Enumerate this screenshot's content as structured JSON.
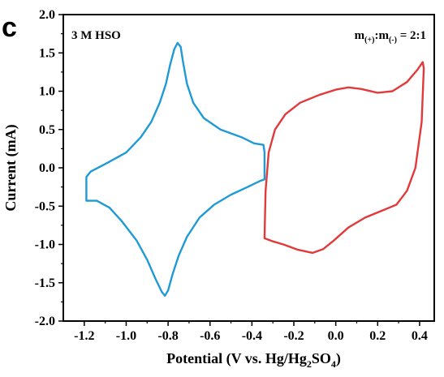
{
  "chart_data": {
    "type": "line",
    "panel_label": "c",
    "annotation_left": "3 M HSO",
    "annotation_right": {
      "m1": "m",
      "s1": "(+)",
      "colon": ":m",
      "s2": "(-)",
      "tail": " = 2:1"
    },
    "xlabel": {
      "a": "Potential (V vs. Hg/Hg",
      "s1": "2",
      "b": "SO",
      "s2": "4",
      "c": ")"
    },
    "ylabel": "Current  (mA)",
    "xlim": [
      -1.3,
      0.47
    ],
    "ylim": [
      -2.0,
      2.0
    ],
    "xticks": [
      -1.2,
      -1.0,
      -0.8,
      -0.6,
      -0.4,
      -0.2,
      0.0,
      0.2,
      0.4
    ],
    "xtick_labels": [
      "-1.2",
      "-1.0",
      "-0.8",
      "-0.6",
      "-0.4",
      "-0.2",
      "0.0",
      "0.2",
      "0.4"
    ],
    "yticks": [
      -2.0,
      -1.5,
      -1.0,
      -0.5,
      0.0,
      0.5,
      1.0,
      1.5,
      2.0
    ],
    "ytick_labels": [
      "-2.0",
      "-1.5",
      "-1.0",
      "-0.5",
      "0.0",
      "0.5",
      "1.0",
      "1.5",
      "2.0"
    ],
    "grid": false,
    "legend": "none",
    "series": [
      {
        "color": "#1f9ad6",
        "points": [
          [
            -1.19,
            -0.43
          ],
          [
            -1.19,
            -0.12
          ],
          [
            -1.17,
            -0.05
          ],
          [
            -1.1,
            0.05
          ],
          [
            -1.0,
            0.2
          ],
          [
            -0.93,
            0.4
          ],
          [
            -0.88,
            0.6
          ],
          [
            -0.84,
            0.85
          ],
          [
            -0.81,
            1.1
          ],
          [
            -0.79,
            1.35
          ],
          [
            -0.77,
            1.55
          ],
          [
            -0.755,
            1.63
          ],
          [
            -0.74,
            1.58
          ],
          [
            -0.73,
            1.4
          ],
          [
            -0.71,
            1.1
          ],
          [
            -0.68,
            0.85
          ],
          [
            -0.63,
            0.65
          ],
          [
            -0.55,
            0.5
          ],
          [
            -0.45,
            0.4
          ],
          [
            -0.39,
            0.32
          ],
          [
            -0.345,
            0.3
          ],
          [
            -0.34,
            0.2
          ],
          [
            -0.34,
            -0.15
          ],
          [
            -0.36,
            -0.17
          ],
          [
            -0.42,
            -0.25
          ],
          [
            -0.5,
            -0.35
          ],
          [
            -0.58,
            -0.48
          ],
          [
            -0.65,
            -0.65
          ],
          [
            -0.71,
            -0.9
          ],
          [
            -0.75,
            -1.15
          ],
          [
            -0.78,
            -1.4
          ],
          [
            -0.8,
            -1.6
          ],
          [
            -0.815,
            -1.67
          ],
          [
            -0.83,
            -1.62
          ],
          [
            -0.86,
            -1.45
          ],
          [
            -0.9,
            -1.2
          ],
          [
            -0.95,
            -0.95
          ],
          [
            -1.02,
            -0.7
          ],
          [
            -1.08,
            -0.52
          ],
          [
            -1.14,
            -0.43
          ],
          [
            -1.19,
            -0.43
          ]
        ]
      },
      {
        "color": "#e23a3a",
        "points": [
          [
            -0.34,
            -0.92
          ],
          [
            -0.335,
            -0.3
          ],
          [
            -0.32,
            0.2
          ],
          [
            -0.29,
            0.5
          ],
          [
            -0.24,
            0.7
          ],
          [
            -0.17,
            0.85
          ],
          [
            -0.08,
            0.95
          ],
          [
            0.0,
            1.02
          ],
          [
            0.06,
            1.05
          ],
          [
            0.12,
            1.03
          ],
          [
            0.2,
            0.98
          ],
          [
            0.27,
            1.0
          ],
          [
            0.34,
            1.12
          ],
          [
            0.39,
            1.28
          ],
          [
            0.415,
            1.38
          ],
          [
            0.42,
            1.3
          ],
          [
            0.41,
            0.6
          ],
          [
            0.38,
            0.0
          ],
          [
            0.34,
            -0.3
          ],
          [
            0.29,
            -0.48
          ],
          [
            0.22,
            -0.56
          ],
          [
            0.14,
            -0.65
          ],
          [
            0.06,
            -0.78
          ],
          [
            -0.01,
            -0.95
          ],
          [
            -0.06,
            -1.06
          ],
          [
            -0.11,
            -1.11
          ],
          [
            -0.18,
            -1.07
          ],
          [
            -0.25,
            -1.0
          ],
          [
            -0.3,
            -0.96
          ],
          [
            -0.34,
            -0.92
          ]
        ]
      }
    ]
  }
}
